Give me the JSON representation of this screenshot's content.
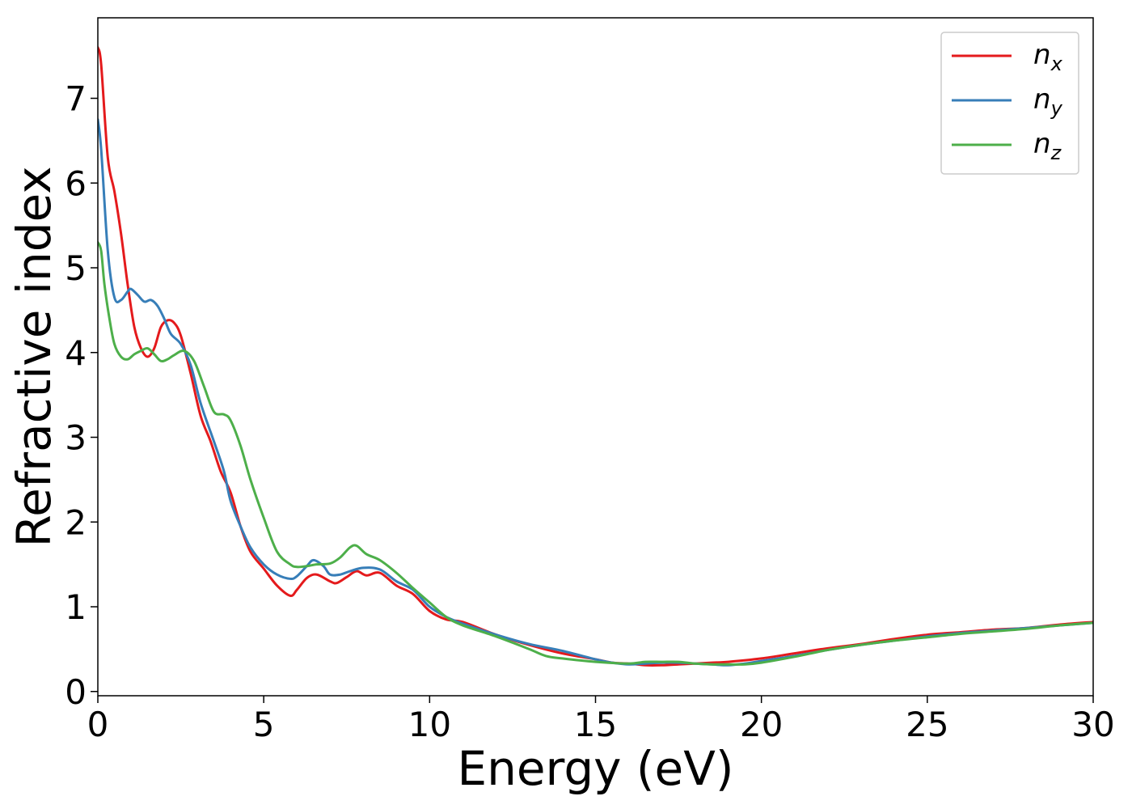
{
  "chart_data": {
    "type": "line",
    "title": "",
    "xlabel": "Energy (eV)",
    "ylabel": "Refractive index",
    "xlim": [
      0,
      30
    ],
    "ylim": [
      -0.05,
      7.95
    ],
    "xticks": [
      0,
      5,
      10,
      15,
      20,
      25,
      30
    ],
    "yticks": [
      0,
      1,
      2,
      3,
      4,
      5,
      6,
      7
    ],
    "xtick_labels": [
      "0",
      "5",
      "10",
      "15",
      "20",
      "25",
      "30"
    ],
    "ytick_labels": [
      "0",
      "1",
      "2",
      "3",
      "4",
      "5",
      "6",
      "7"
    ],
    "grid": false,
    "legend_position": "top-right",
    "series": [
      {
        "name": "n_x",
        "label_main": "n",
        "label_sub": "x",
        "color": "#e41a1c",
        "x": [
          0,
          0.1,
          0.3,
          0.5,
          0.7,
          0.9,
          1.1,
          1.3,
          1.5,
          1.7,
          1.9,
          2.1,
          2.3,
          2.5,
          2.8,
          3.1,
          3.4,
          3.7,
          4.0,
          4.3,
          4.6,
          5.0,
          5.4,
          5.8,
          6.0,
          6.3,
          6.6,
          7.0,
          7.2,
          7.5,
          7.8,
          8.1,
          8.5,
          9.0,
          9.5,
          10.0,
          10.5,
          11.0,
          12.0,
          13.0,
          14.0,
          15.0,
          15.5,
          16.0,
          16.5,
          17.0,
          17.5,
          18.0,
          18.5,
          19.0,
          20.0,
          21.0,
          22.0,
          23.0,
          24.0,
          25.0,
          26.0,
          27.0,
          28.0,
          29.0,
          30.0
        ],
        "y": [
          7.6,
          7.4,
          6.3,
          5.9,
          5.4,
          4.8,
          4.3,
          4.05,
          3.95,
          4.05,
          4.3,
          4.38,
          4.35,
          4.2,
          3.75,
          3.25,
          2.95,
          2.6,
          2.35,
          1.95,
          1.65,
          1.45,
          1.25,
          1.13,
          1.2,
          1.34,
          1.38,
          1.3,
          1.28,
          1.35,
          1.42,
          1.37,
          1.4,
          1.25,
          1.15,
          0.95,
          0.85,
          0.82,
          0.67,
          0.55,
          0.45,
          0.38,
          0.34,
          0.33,
          0.31,
          0.31,
          0.32,
          0.33,
          0.34,
          0.35,
          0.39,
          0.45,
          0.51,
          0.56,
          0.62,
          0.67,
          0.7,
          0.73,
          0.75,
          0.79,
          0.82
        ]
      },
      {
        "name": "n_y",
        "label_main": "n",
        "label_sub": "y",
        "color": "#377eb8",
        "x": [
          0,
          0.1,
          0.3,
          0.5,
          0.7,
          0.9,
          1.0,
          1.2,
          1.4,
          1.6,
          1.8,
          2.0,
          2.2,
          2.5,
          2.8,
          3.1,
          3.5,
          3.8,
          4.0,
          4.3,
          4.6,
          5.0,
          5.4,
          5.8,
          6.0,
          6.3,
          6.5,
          6.8,
          7.0,
          7.3,
          7.6,
          8.0,
          8.5,
          9.0,
          9.5,
          10.0,
          10.5,
          11.0,
          12.0,
          13.0,
          14.0,
          15.0,
          15.5,
          16.0,
          16.5,
          17.0,
          17.5,
          18.0,
          18.5,
          19.0,
          19.5,
          20.0,
          21.0,
          22.0,
          23.0,
          24.0,
          25.0,
          26.0,
          27.0,
          28.0,
          29.0,
          30.0
        ],
        "y": [
          6.75,
          6.4,
          5.2,
          4.65,
          4.62,
          4.72,
          4.75,
          4.68,
          4.6,
          4.62,
          4.55,
          4.4,
          4.22,
          4.1,
          3.85,
          3.4,
          2.95,
          2.6,
          2.25,
          1.95,
          1.7,
          1.5,
          1.38,
          1.33,
          1.36,
          1.48,
          1.55,
          1.48,
          1.38,
          1.38,
          1.42,
          1.46,
          1.44,
          1.3,
          1.2,
          1.0,
          0.88,
          0.8,
          0.67,
          0.56,
          0.48,
          0.38,
          0.34,
          0.32,
          0.33,
          0.34,
          0.34,
          0.33,
          0.32,
          0.31,
          0.33,
          0.36,
          0.42,
          0.49,
          0.55,
          0.6,
          0.65,
          0.69,
          0.72,
          0.75,
          0.78,
          0.81
        ]
      },
      {
        "name": "n_z",
        "label_main": "n",
        "label_sub": "z",
        "color": "#4daf4a",
        "x": [
          0,
          0.1,
          0.2,
          0.35,
          0.5,
          0.7,
          0.9,
          1.1,
          1.3,
          1.5,
          1.7,
          1.9,
          2.1,
          2.3,
          2.6,
          2.9,
          3.2,
          3.5,
          3.8,
          4.0,
          4.3,
          4.6,
          5.0,
          5.4,
          5.8,
          6.0,
          6.3,
          6.6,
          7.0,
          7.3,
          7.6,
          7.8,
          8.1,
          8.5,
          9.0,
          9.5,
          10.0,
          10.5,
          11.0,
          12.0,
          13.0,
          13.5,
          14.0,
          15.0,
          16.0,
          16.5,
          17.0,
          17.5,
          18.0,
          18.5,
          19.0,
          19.5,
          20.0,
          21.0,
          22.0,
          23.0,
          24.0,
          25.0,
          26.0,
          27.0,
          28.0,
          29.0,
          30.0
        ],
        "y": [
          5.3,
          5.2,
          4.8,
          4.4,
          4.1,
          3.95,
          3.92,
          3.98,
          4.02,
          4.05,
          3.98,
          3.9,
          3.92,
          3.97,
          4.02,
          3.9,
          3.6,
          3.3,
          3.27,
          3.2,
          2.9,
          2.5,
          2.05,
          1.65,
          1.5,
          1.47,
          1.48,
          1.5,
          1.51,
          1.58,
          1.7,
          1.72,
          1.62,
          1.55,
          1.4,
          1.22,
          1.05,
          0.88,
          0.78,
          0.65,
          0.5,
          0.42,
          0.39,
          0.35,
          0.33,
          0.35,
          0.35,
          0.35,
          0.33,
          0.32,
          0.32,
          0.32,
          0.34,
          0.41,
          0.49,
          0.55,
          0.6,
          0.64,
          0.68,
          0.71,
          0.74,
          0.78,
          0.81
        ]
      }
    ]
  }
}
